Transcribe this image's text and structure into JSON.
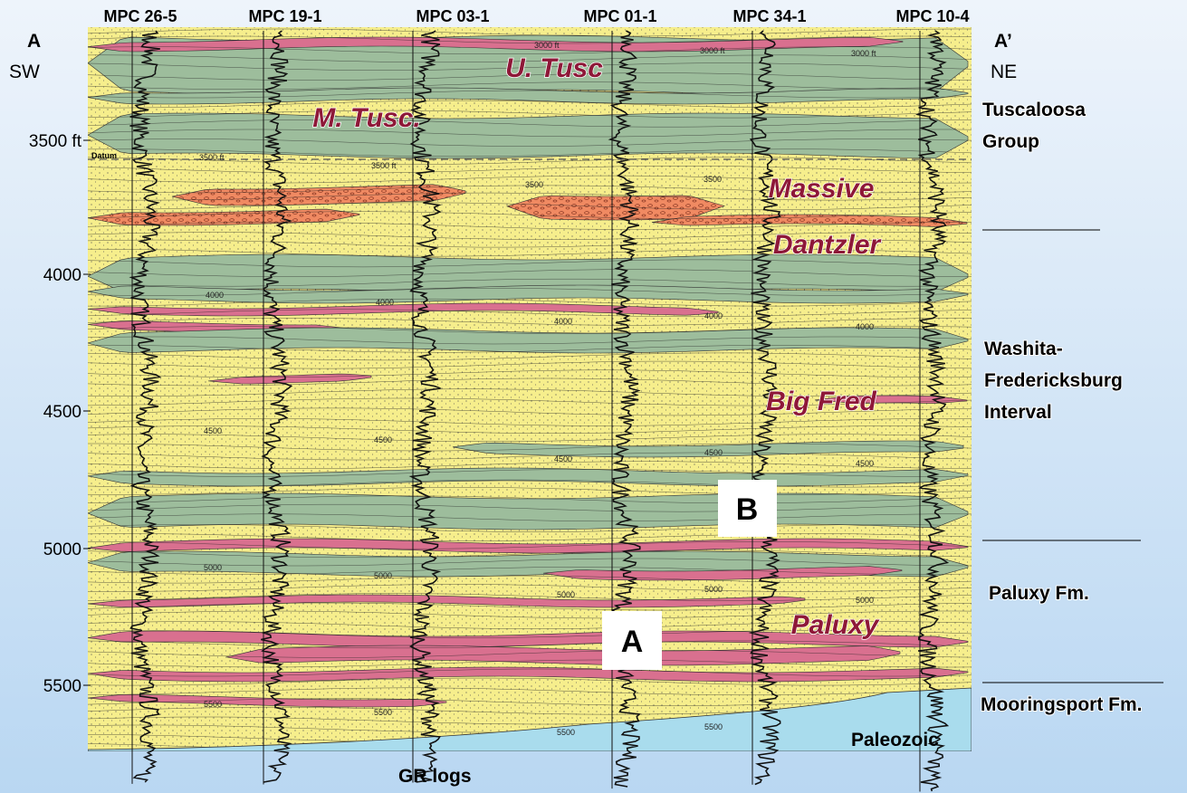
{
  "header": {
    "left_end": {
      "letter": "A",
      "direction": "SW"
    },
    "right_end": {
      "letter": "A’",
      "direction": "NE"
    }
  },
  "wells": [
    "MPC 26-5",
    "MPC 19-1",
    "MPC 03-1",
    "MPC 01-1",
    "MPC 34-1",
    "MPC 10-4"
  ],
  "depth_labels": [
    "3500 ft",
    "4000",
    "4500",
    "5000",
    "5500"
  ],
  "datum_label": "Datum",
  "units": [
    "U. Tusc",
    "M. Tusc.",
    "Massive",
    "Dantzler",
    "Big Fred",
    "Paluxy"
  ],
  "intervals": [
    [
      "Tuscaloosa",
      "Group"
    ],
    [
      "Washita-",
      "Fredericksburg",
      "Interval"
    ],
    [
      "Paluxy Fm."
    ],
    [
      "Mooringsport Fm."
    ]
  ],
  "basement": "Paleozoic",
  "log_type": "GR logs",
  "callouts": [
    "B",
    "A"
  ],
  "well_depth_marks": [
    "3000 ft",
    "3000 ft",
    "3000 ft",
    "3500 ft",
    "3500 ft",
    "3500",
    "3500",
    "4000",
    "4000",
    "4000",
    "4000",
    "4000",
    "4500",
    "4500",
    "4500",
    "4500",
    "4500",
    "5000",
    "5000",
    "5000",
    "5000",
    "5000",
    "5500",
    "5500",
    "5500",
    "5500"
  ]
}
